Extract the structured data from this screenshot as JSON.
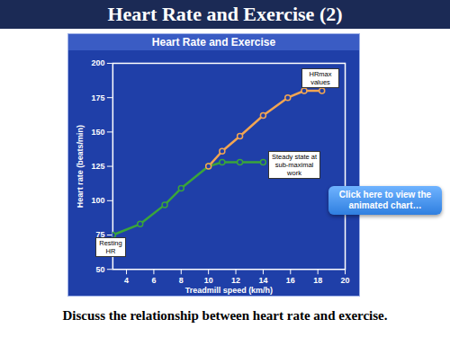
{
  "slide": {
    "title": "Heart Rate and Exercise (2)",
    "button": "Click here to view the animated chart…",
    "caption": "Discuss the relationship between heart rate and exercise."
  },
  "chart_data": {
    "type": "line",
    "title": "Heart Rate and Exercise",
    "x_label": "Treadmill speed (km/h)",
    "y_label": "Heart rate (beats/min)",
    "x": [
      3,
      5,
      6.8,
      8,
      10,
      11,
      12.3,
      14,
      15.8,
      17,
      18.3
    ],
    "series": [
      {
        "name": "Steady state at sub-maximal work",
        "color": "#3aa53a",
        "marker": "circle",
        "values": [
          75,
          83,
          97,
          109,
          125,
          128,
          128,
          128,
          null,
          null,
          null
        ]
      },
      {
        "name": "HRmax values",
        "color": "#f2a552",
        "marker": "circle",
        "values": [
          null,
          null,
          null,
          null,
          125,
          136,
          147,
          162,
          175,
          180,
          180
        ]
      }
    ],
    "annotations": [
      "Resting HR"
    ],
    "xlim": [
      3,
      20
    ],
    "xticks": [
      4,
      6,
      8,
      10,
      12,
      14,
      16,
      18,
      20
    ],
    "ylim": [
      50,
      200
    ],
    "yticks": [
      50,
      75,
      100,
      125,
      150,
      175,
      200
    ],
    "grid": false
  }
}
